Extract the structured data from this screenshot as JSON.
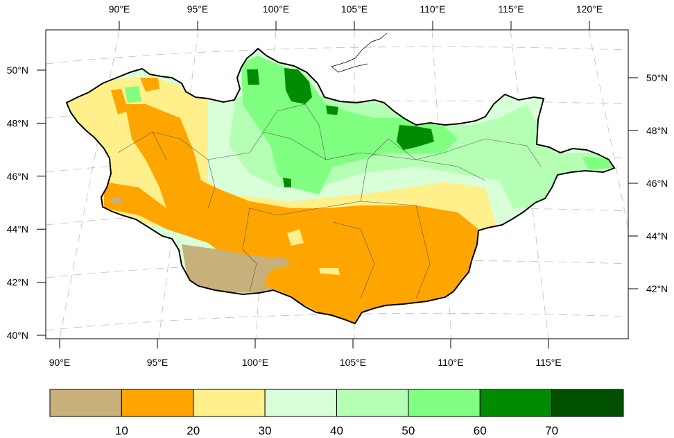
{
  "top_axis": {
    "ticks": [
      {
        "value": 90,
        "label": "90°E"
      },
      {
        "value": 95,
        "label": "95°E"
      },
      {
        "value": 100,
        "label": "100°E"
      },
      {
        "value": 105,
        "label": "105°E"
      },
      {
        "value": 110,
        "label": "110°E"
      },
      {
        "value": 115,
        "label": "115°E"
      },
      {
        "value": 120,
        "label": "120°E"
      }
    ]
  },
  "bottom_axis": {
    "ticks": [
      {
        "value": 90,
        "label": "90°E"
      },
      {
        "value": 95,
        "label": "95°E"
      },
      {
        "value": 100,
        "label": "100°E"
      },
      {
        "value": 105,
        "label": "105°E"
      },
      {
        "value": 110,
        "label": "110°E"
      },
      {
        "value": 115,
        "label": "115°E"
      }
    ]
  },
  "left_axis": {
    "ticks": [
      {
        "value": 50,
        "label": "50°N"
      },
      {
        "value": 48,
        "label": "48°N"
      },
      {
        "value": 46,
        "label": "46°N"
      },
      {
        "value": 44,
        "label": "44°N"
      },
      {
        "value": 42,
        "label": "42°N"
      },
      {
        "value": 40,
        "label": "40°N"
      }
    ]
  },
  "right_axis": {
    "ticks": [
      {
        "value": 50,
        "label": "50°N"
      },
      {
        "value": 48,
        "label": "48°N"
      },
      {
        "value": 46,
        "label": "46°N"
      },
      {
        "value": 44,
        "label": "44°N"
      },
      {
        "value": 42,
        "label": "42°N"
      }
    ]
  },
  "legend": {
    "colors": [
      "#c8b07a",
      "#ffa500",
      "#fff08c",
      "#d9ffd9",
      "#b5ffb5",
      "#80ff80",
      "#008c00",
      "#005000"
    ],
    "labels": [
      "10",
      "20",
      "30",
      "40",
      "50",
      "60",
      "70"
    ]
  },
  "map_colors": {
    "background": "#ffffff",
    "border": "#000000",
    "province_lines": "#555555",
    "graticule": "#bdbdbd"
  }
}
